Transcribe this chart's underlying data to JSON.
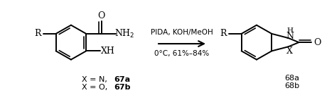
{
  "bg_color": "#ffffff",
  "arrow_color": "#000000",
  "text_color": "#000000",
  "cond1": "PIDA, KOH/MeOH",
  "cond2": "0°C, 61%–84%",
  "lbl_line1_plain": "X = N, ",
  "lbl_line1_bold": "67a",
  "lbl_line2_plain": "X = O, ",
  "lbl_line2_bold": "67b",
  "prod_lbl1": "68a",
  "prod_lbl2": "68b",
  "figsize": [
    4.53,
    1.32
  ],
  "dpi": 100
}
